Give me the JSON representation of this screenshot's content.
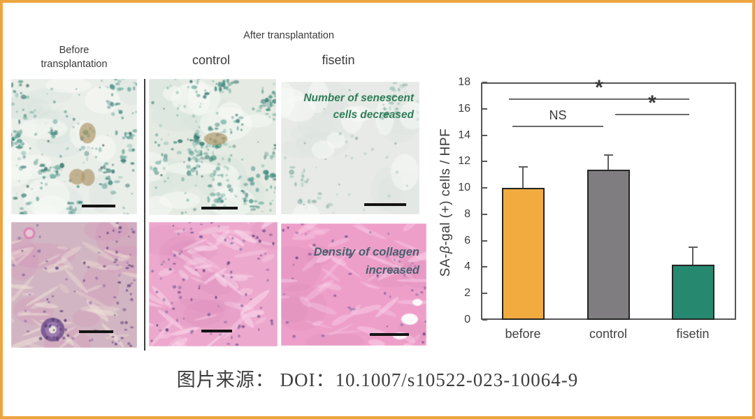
{
  "frame": {
    "border_color": "#eea53f"
  },
  "header": {
    "before_label": "Before\ntransplantation",
    "after_label": "After transplantation",
    "control_label": "control",
    "fisetin_label": "fisetin"
  },
  "annotations": {
    "senescent": "Number of senescent\ncells decreased",
    "collagen": "Density of collagen\nincreased"
  },
  "panels": [
    {
      "id": "sabgal-before",
      "bg": "#eaeee9",
      "accent": "#4f998c",
      "extra": "#ae9769"
    },
    {
      "id": "sabgal-control",
      "bg": "#e5ebe3",
      "accent": "#4a968a",
      "extra": "#ae9769"
    },
    {
      "id": "sabgal-fisetin",
      "bg": "#e7eae6",
      "accent": "#82a89e",
      "extra": ""
    },
    {
      "id": "he-before",
      "bg": "#d2b5c2",
      "accent": "#6b4a8c",
      "extra": "#ecdfd6"
    },
    {
      "id": "he-control",
      "bg": "#eda8cd",
      "accent": "#64478a",
      "extra": "#f9d9ec"
    },
    {
      "id": "he-fisetin",
      "bg": "#ee9fc9",
      "accent": "#64478a",
      "extra": "#f8cce6"
    }
  ],
  "chart_data": {
    "type": "bar",
    "title": "",
    "ylabel": "SA-β-gal (+) cells / HPF",
    "xlabel": "",
    "categories": [
      "before",
      "control",
      "fisetin"
    ],
    "values": [
      10.0,
      11.4,
      4.2
    ],
    "errors": [
      1.6,
      1.1,
      1.3
    ],
    "ylim": [
      0,
      18
    ],
    "ytick_step": 2,
    "grid": false,
    "legend": "none",
    "bar_colors": [
      "#f2ab3f",
      "#7f7d80",
      "#26886f"
    ],
    "bar_border_color": "#242424",
    "significance": [
      {
        "from": 0,
        "to": 2,
        "label": "*",
        "at": 16.8,
        "off1": -20,
        "off2": -5
      },
      {
        "from": 1,
        "to": 2,
        "label": "*",
        "at": 15.6,
        "off1": 10,
        "off2": -5
      },
      {
        "from": 0,
        "to": 1,
        "label": "NS",
        "at": 14.7,
        "off1": -15,
        "off2": -7
      }
    ]
  },
  "caption": {
    "text": "图片来源：  DOI：10.1007/s10522-023-10064-9"
  }
}
